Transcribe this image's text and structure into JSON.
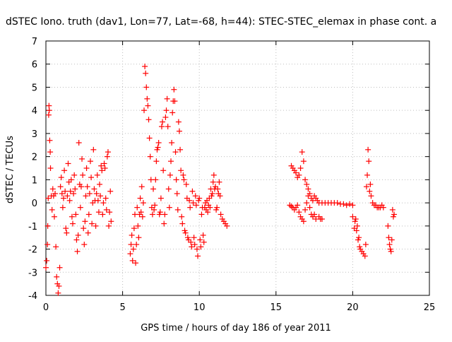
{
  "chart_data": {
    "type": "scatter",
    "title": "dSTEC Iono. truth (dav1, Lon=77, Lat=-68, h=44): STEC-STEC_elemax in phase cont. a",
    "xlabel": "GPS time / hours of day 186 of year 2011",
    "ylabel": "dSTEC  / TECUs",
    "xlim": [
      0,
      25
    ],
    "ylim": [
      -4,
      7
    ],
    "xticks": [
      0,
      5,
      10,
      15,
      20,
      25
    ],
    "yticks": [
      -4,
      -3,
      -2,
      -1,
      0,
      1,
      2,
      3,
      4,
      5,
      6,
      7
    ],
    "grid": true,
    "legend": "none",
    "marker": "+",
    "series_color": "#ff0000",
    "series": [
      {
        "name": "",
        "points": [
          [
            0.0,
            -2.8
          ],
          [
            0.05,
            -2.5
          ],
          [
            0.1,
            -1.8
          ],
          [
            0.12,
            -1.0
          ],
          [
            0.15,
            0.2
          ],
          [
            0.18,
            3.8
          ],
          [
            0.2,
            4.2
          ],
          [
            0.22,
            4.0
          ],
          [
            0.25,
            2.7
          ],
          [
            0.28,
            2.2
          ],
          [
            0.3,
            1.5
          ],
          [
            0.35,
            0.3
          ],
          [
            0.4,
            -0.3
          ],
          [
            0.45,
            0.6
          ],
          [
            0.5,
            0.3
          ],
          [
            0.55,
            -0.6
          ],
          [
            0.6,
            0.4
          ],
          [
            0.65,
            -1.9
          ],
          [
            0.7,
            -3.2
          ],
          [
            0.75,
            -3.5
          ],
          [
            0.8,
            -3.9
          ],
          [
            0.85,
            -3.6
          ],
          [
            0.9,
            -2.8
          ],
          [
            0.95,
            0.7
          ],
          [
            1.0,
            1.1
          ],
          [
            1.05,
            0.4
          ],
          [
            1.1,
            -0.2
          ],
          [
            1.15,
            0.2
          ],
          [
            1.2,
            1.4
          ],
          [
            1.25,
            0.5
          ],
          [
            1.3,
            -1.1
          ],
          [
            1.35,
            -1.3
          ],
          [
            1.4,
            0.3
          ],
          [
            1.45,
            1.7
          ],
          [
            1.5,
            0.9
          ],
          [
            1.55,
            0.1
          ],
          [
            1.6,
            0.5
          ],
          [
            1.65,
            1.0
          ],
          [
            1.7,
            -0.6
          ],
          [
            1.75,
            -0.9
          ],
          [
            1.8,
            0.4
          ],
          [
            1.85,
            1.2
          ],
          [
            1.9,
            0.6
          ],
          [
            1.95,
            -0.5
          ],
          [
            2.0,
            -1.6
          ],
          [
            2.05,
            -2.1
          ],
          [
            2.1,
            -1.4
          ],
          [
            2.15,
            2.6
          ],
          [
            2.2,
            0.8
          ],
          [
            2.25,
            -0.2
          ],
          [
            2.3,
            0.7
          ],
          [
            2.35,
            1.9
          ],
          [
            2.4,
            1.2
          ],
          [
            2.45,
            -1.1
          ],
          [
            2.5,
            -1.8
          ],
          [
            2.55,
            -0.8
          ],
          [
            2.6,
            0.3
          ],
          [
            2.65,
            1.5
          ],
          [
            2.7,
            0.7
          ],
          [
            2.75,
            -1.3
          ],
          [
            2.8,
            -0.5
          ],
          [
            2.85,
            0.4
          ],
          [
            2.9,
            1.8
          ],
          [
            2.95,
            1.1
          ],
          [
            3.0,
            -0.9
          ],
          [
            3.05,
            0.0
          ],
          [
            3.1,
            2.3
          ],
          [
            3.15,
            0.6
          ],
          [
            3.2,
            0.1
          ],
          [
            3.25,
            -1.0
          ],
          [
            3.3,
            0.4
          ],
          [
            3.35,
            1.2
          ],
          [
            3.4,
            0.1
          ],
          [
            3.45,
            -0.4
          ],
          [
            3.5,
            0.8
          ],
          [
            3.55,
            0.3
          ],
          [
            3.6,
            1.6
          ],
          [
            3.65,
            1.4
          ],
          [
            3.7,
            -0.5
          ],
          [
            3.75,
            0.0
          ],
          [
            3.8,
            1.7
          ],
          [
            3.85,
            1.5
          ],
          [
            3.9,
            0.2
          ],
          [
            3.95,
            -0.3
          ],
          [
            4.0,
            2.0
          ],
          [
            4.05,
            2.2
          ],
          [
            4.1,
            -1.0
          ],
          [
            4.15,
            -0.4
          ],
          [
            4.2,
            0.5
          ],
          [
            4.25,
            -0.8
          ],
          [
            5.5,
            -2.2
          ],
          [
            5.55,
            -1.8
          ],
          [
            5.6,
            -1.4
          ],
          [
            5.65,
            -2.5
          ],
          [
            5.7,
            -2.0
          ],
          [
            5.75,
            -1.1
          ],
          [
            5.8,
            -0.5
          ],
          [
            5.85,
            -2.6
          ],
          [
            5.9,
            -1.8
          ],
          [
            5.95,
            -0.2
          ],
          [
            6.0,
            -1.0
          ],
          [
            6.05,
            -1.5
          ],
          [
            6.1,
            -0.5
          ],
          [
            6.15,
            0.2
          ],
          [
            6.2,
            -0.4
          ],
          [
            6.25,
            0.7
          ],
          [
            6.3,
            -0.6
          ],
          [
            6.35,
            0.0
          ],
          [
            6.4,
            4.0
          ],
          [
            6.45,
            5.9
          ],
          [
            6.5,
            5.6
          ],
          [
            6.55,
            5.0
          ],
          [
            6.6,
            4.5
          ],
          [
            6.65,
            4.2
          ],
          [
            6.7,
            3.6
          ],
          [
            6.75,
            2.8
          ],
          [
            6.8,
            2.0
          ],
          [
            6.85,
            1.0
          ],
          [
            6.9,
            -0.2
          ],
          [
            6.95,
            -0.5
          ],
          [
            7.0,
            0.6
          ],
          [
            7.05,
            -0.3
          ],
          [
            7.1,
            -0.1
          ],
          [
            7.15,
            1.0
          ],
          [
            7.2,
            1.8
          ],
          [
            7.25,
            2.3
          ],
          [
            7.3,
            2.4
          ],
          [
            7.35,
            2.6
          ],
          [
            7.4,
            -0.5
          ],
          [
            7.45,
            -0.4
          ],
          [
            7.5,
            0.2
          ],
          [
            7.55,
            3.3
          ],
          [
            7.6,
            3.5
          ],
          [
            7.65,
            1.4
          ],
          [
            7.7,
            -0.9
          ],
          [
            7.75,
            -0.5
          ],
          [
            7.8,
            3.7
          ],
          [
            7.85,
            4.0
          ],
          [
            7.9,
            4.5
          ],
          [
            7.95,
            3.3
          ],
          [
            8.0,
            0.6
          ],
          [
            8.05,
            -0.2
          ],
          [
            8.1,
            1.2
          ],
          [
            8.15,
            1.8
          ],
          [
            8.2,
            2.6
          ],
          [
            8.25,
            3.9
          ],
          [
            8.3,
            4.4
          ],
          [
            8.35,
            4.9
          ],
          [
            8.4,
            4.4
          ],
          [
            8.45,
            2.2
          ],
          [
            8.5,
            1.0
          ],
          [
            8.55,
            0.4
          ],
          [
            8.6,
            -0.3
          ],
          [
            8.65,
            3.5
          ],
          [
            8.7,
            3.1
          ],
          [
            8.75,
            2.3
          ],
          [
            8.8,
            1.4
          ],
          [
            8.85,
            -0.6
          ],
          [
            8.9,
            -0.9
          ],
          [
            8.95,
            1.2
          ],
          [
            9.0,
            1.0
          ],
          [
            9.05,
            -1.2
          ],
          [
            9.1,
            -1.3
          ],
          [
            9.15,
            0.8
          ],
          [
            9.2,
            0.2
          ],
          [
            9.25,
            -1.5
          ],
          [
            9.3,
            -1.6
          ],
          [
            9.35,
            0.1
          ],
          [
            9.4,
            -0.2
          ],
          [
            9.45,
            -1.7
          ],
          [
            9.5,
            -1.9
          ],
          [
            9.55,
            0.5
          ],
          [
            9.6,
            0.0
          ],
          [
            9.65,
            -1.5
          ],
          [
            9.7,
            -1.8
          ],
          [
            9.75,
            0.3
          ],
          [
            9.8,
            -0.1
          ],
          [
            9.85,
            -2.0
          ],
          [
            9.9,
            -2.3
          ],
          [
            9.95,
            0.1
          ],
          [
            10.0,
            0.2
          ],
          [
            10.05,
            -1.6
          ],
          [
            10.1,
            -1.9
          ],
          [
            10.15,
            -0.5
          ],
          [
            10.2,
            -0.2
          ],
          [
            10.25,
            -1.4
          ],
          [
            10.3,
            -1.7
          ],
          [
            10.35,
            -0.2
          ],
          [
            10.4,
            0.0
          ],
          [
            10.45,
            -0.3
          ],
          [
            10.5,
            0.1
          ],
          [
            10.55,
            -0.4
          ],
          [
            10.6,
            -0.1
          ],
          [
            10.65,
            0.2
          ],
          [
            10.7,
            -0.2
          ],
          [
            10.75,
            0.6
          ],
          [
            10.8,
            0.3
          ],
          [
            10.85,
            0.4
          ],
          [
            10.9,
            0.9
          ],
          [
            10.95,
            1.2
          ],
          [
            11.0,
            0.6
          ],
          [
            11.05,
            0.7
          ],
          [
            11.1,
            -0.3
          ],
          [
            11.15,
            -0.2
          ],
          [
            11.2,
            0.6
          ],
          [
            11.25,
            0.4
          ],
          [
            11.3,
            0.9
          ],
          [
            11.35,
            0.3
          ],
          [
            11.4,
            -0.5
          ],
          [
            11.5,
            -0.7
          ],
          [
            11.6,
            -0.8
          ],
          [
            11.7,
            -0.9
          ],
          [
            11.8,
            -1.0
          ],
          [
            15.9,
            -0.1
          ],
          [
            16.0,
            -0.15
          ],
          [
            16.1,
            -0.2
          ],
          [
            16.2,
            -0.3
          ],
          [
            16.3,
            -0.2
          ],
          [
            16.4,
            -0.1
          ],
          [
            16.5,
            -0.4
          ],
          [
            16.6,
            -0.6
          ],
          [
            16.7,
            -0.7
          ],
          [
            16.8,
            -0.8
          ],
          [
            16.0,
            1.6
          ],
          [
            16.1,
            1.5
          ],
          [
            16.2,
            1.4
          ],
          [
            16.3,
            1.3
          ],
          [
            16.4,
            1.1
          ],
          [
            16.5,
            1.2
          ],
          [
            16.6,
            1.5
          ],
          [
            16.7,
            2.2
          ],
          [
            16.8,
            1.8
          ],
          [
            16.9,
            1.0
          ],
          [
            17.0,
            0.8
          ],
          [
            17.1,
            0.6
          ],
          [
            17.2,
            0.4
          ],
          [
            16.9,
            -0.3
          ],
          [
            17.0,
            0.0
          ],
          [
            17.1,
            0.3
          ],
          [
            17.2,
            -0.2
          ],
          [
            17.3,
            -0.5
          ],
          [
            17.3,
            0.2
          ],
          [
            17.4,
            0.1
          ],
          [
            17.5,
            0.3
          ],
          [
            17.6,
            0.2
          ],
          [
            17.4,
            -0.6
          ],
          [
            17.5,
            -0.5
          ],
          [
            17.6,
            -0.7
          ],
          [
            17.7,
            0.1
          ],
          [
            17.8,
            -0.6
          ],
          [
            17.9,
            -0.7
          ],
          [
            18.0,
            -0.7
          ],
          [
            17.8,
            0.0
          ],
          [
            18.0,
            0.0
          ],
          [
            18.2,
            0.0
          ],
          [
            18.4,
            0.0
          ],
          [
            18.6,
            0.0
          ],
          [
            18.8,
            0.0
          ],
          [
            19.0,
            0.0
          ],
          [
            19.2,
            -0.05
          ],
          [
            19.4,
            -0.05
          ],
          [
            19.6,
            -0.1
          ],
          [
            19.8,
            -0.05
          ],
          [
            20.0,
            -0.1
          ],
          [
            20.0,
            -0.6
          ],
          [
            20.1,
            -1.1
          ],
          [
            20.15,
            -0.8
          ],
          [
            20.2,
            -0.7
          ],
          [
            20.25,
            -1.2
          ],
          [
            20.3,
            -1.0
          ],
          [
            20.35,
            -1.6
          ],
          [
            20.4,
            -1.5
          ],
          [
            20.45,
            -1.9
          ],
          [
            20.5,
            -2.0
          ],
          [
            20.6,
            -2.1
          ],
          [
            20.7,
            -2.2
          ],
          [
            20.8,
            -2.3
          ],
          [
            20.85,
            -1.8
          ],
          [
            20.9,
            0.7
          ],
          [
            20.95,
            1.2
          ],
          [
            21.0,
            2.3
          ],
          [
            21.05,
            1.8
          ],
          [
            21.1,
            0.5
          ],
          [
            21.15,
            0.8
          ],
          [
            21.2,
            0.3
          ],
          [
            21.3,
            0.0
          ],
          [
            21.4,
            -0.1
          ],
          [
            21.5,
            -0.1
          ],
          [
            21.6,
            -0.2
          ],
          [
            21.7,
            -0.2
          ],
          [
            21.8,
            -0.2
          ],
          [
            21.9,
            -0.1
          ],
          [
            22.0,
            -0.2
          ],
          [
            22.3,
            -1.0
          ],
          [
            22.35,
            -1.5
          ],
          [
            22.4,
            -1.8
          ],
          [
            22.45,
            -2.0
          ],
          [
            22.5,
            -2.1
          ],
          [
            22.55,
            -1.6
          ],
          [
            22.6,
            -0.3
          ],
          [
            22.65,
            -0.6
          ],
          [
            22.7,
            -0.5
          ]
        ]
      }
    ]
  }
}
